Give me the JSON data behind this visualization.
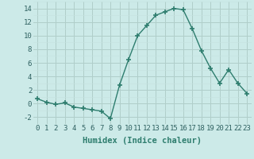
{
  "x": [
    0,
    1,
    2,
    3,
    4,
    5,
    6,
    7,
    8,
    9,
    10,
    11,
    12,
    13,
    14,
    15,
    16,
    17,
    18,
    19,
    20,
    21,
    22,
    23
  ],
  "y": [
    0.7,
    0.2,
    -0.1,
    0.1,
    -0.5,
    -0.7,
    -0.9,
    -1.1,
    -2.2,
    2.7,
    6.5,
    10.0,
    11.5,
    13.0,
    13.5,
    14.0,
    13.8,
    11.0,
    7.8,
    5.2,
    3.0,
    5.0,
    3.0,
    1.5
  ],
  "line_color": "#2e7d6e",
  "marker": "+",
  "marker_size": 4,
  "marker_lw": 1.2,
  "bg_color": "#cceae8",
  "grid_color_major": "#b0ceca",
  "grid_color_minor": "#c5e2e0",
  "xlabel": "Humidex (Indice chaleur)",
  "ylim": [
    -3,
    15
  ],
  "xlim": [
    -0.5,
    23.5
  ],
  "yticks": [
    -2,
    0,
    2,
    4,
    6,
    8,
    10,
    12,
    14
  ],
  "xtick_labels": [
    "0",
    "1",
    "2",
    "3",
    "4",
    "5",
    "6",
    "7",
    "8",
    "9",
    "10",
    "11",
    "12",
    "13",
    "14",
    "15",
    "16",
    "17",
    "18",
    "19",
    "20",
    "21",
    "22",
    "23"
  ],
  "xlabel_fontsize": 7.5,
  "tick_fontsize": 6.5,
  "line_width": 1.0
}
